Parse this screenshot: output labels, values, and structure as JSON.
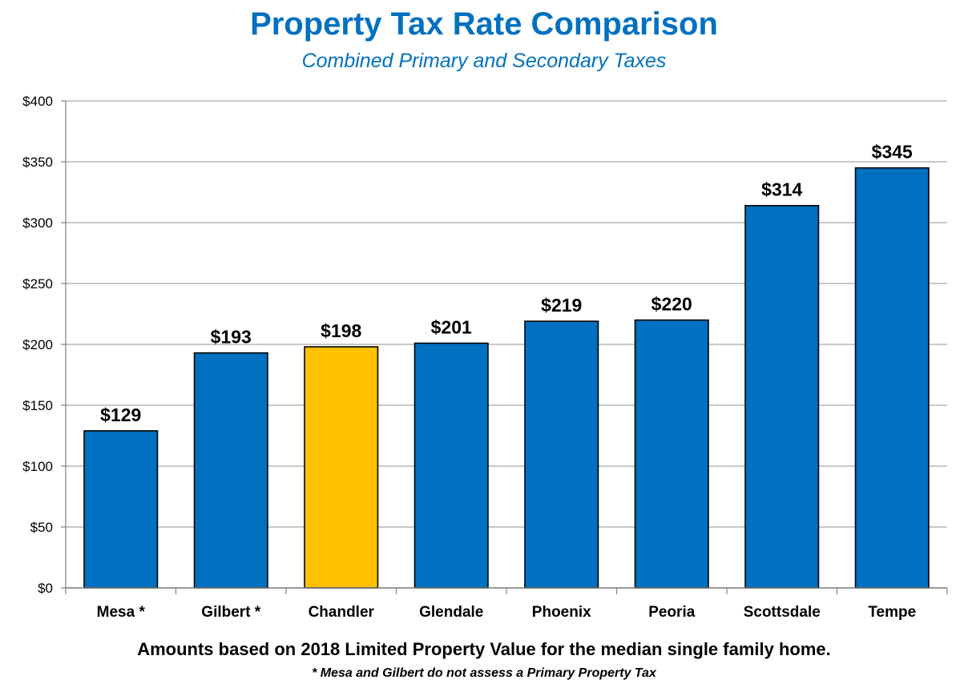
{
  "chart_data": {
    "type": "bar",
    "title": "Property Tax Rate Comparison",
    "subtitle": "Combined Primary and Secondary Taxes",
    "categories": [
      "Mesa *",
      "Gilbert *",
      "Chandler",
      "Glendale",
      "Phoenix",
      "Peoria",
      "Scottsdale",
      "Tempe"
    ],
    "values": [
      129,
      193,
      198,
      201,
      219,
      220,
      314,
      345
    ],
    "data_labels": [
      "$129",
      "$193",
      "$198",
      "$201",
      "$219",
      "$220",
      "$314",
      "$345"
    ],
    "ylim": [
      0,
      400
    ],
    "yticks": [
      0,
      50,
      100,
      150,
      200,
      250,
      300,
      350,
      400
    ],
    "ytick_labels": [
      "$0",
      "$50",
      "$100",
      "$150",
      "$200",
      "$250",
      "$300",
      "$350",
      "$400"
    ],
    "grid": true,
    "legend": "none",
    "colors": {
      "default": "#0070c0",
      "highlight": "#ffc000",
      "highlight_category": "Chandler"
    },
    "xlabel": "",
    "ylabel": ""
  },
  "footnote": "Amounts based on 2018 Limited Property Value for the median single family home.",
  "footnote2": "* Mesa and Gilbert do not assess a Primary Property Tax"
}
